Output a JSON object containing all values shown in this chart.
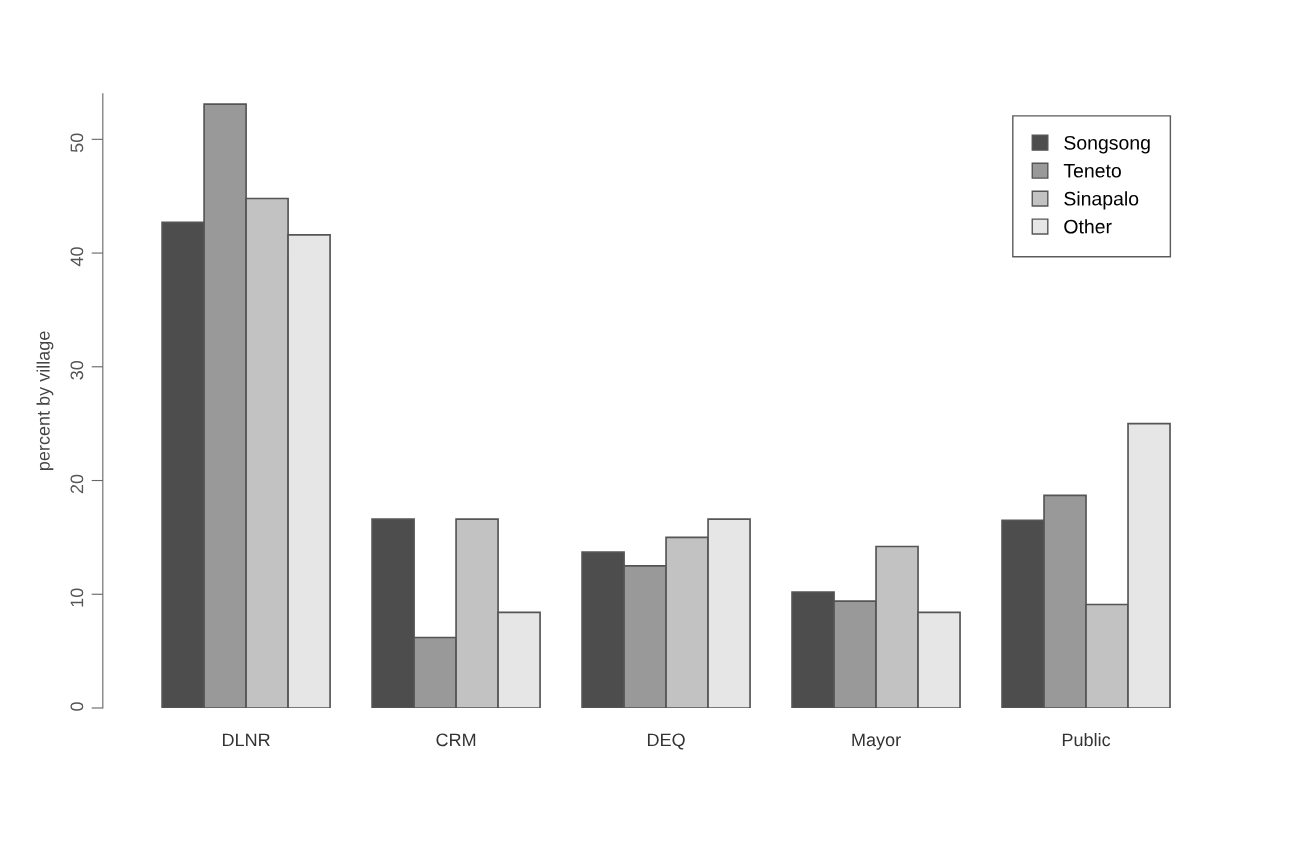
{
  "chart_data": {
    "type": "bar",
    "ylabel": "percent by village",
    "categories": [
      "DLNR",
      "CRM",
      "DEQ",
      "Mayor",
      "Public"
    ],
    "series": [
      {
        "name": "Songsong",
        "color": "#4d4d4d",
        "values": [
          42.7,
          16.6,
          13.7,
          10.2,
          16.5
        ]
      },
      {
        "name": "Teneto",
        "color": "#999999",
        "values": [
          53.1,
          6.2,
          12.5,
          9.4,
          18.7
        ]
      },
      {
        "name": "Sinapalo",
        "color": "#c2c2c2",
        "values": [
          44.8,
          16.6,
          15.0,
          14.2,
          9.1
        ]
      },
      {
        "name": "Other",
        "color": "#e6e6e6",
        "values": [
          41.6,
          8.4,
          16.6,
          8.4,
          25.0
        ]
      }
    ],
    "ylim": [
      0,
      54
    ],
    "yticks": [
      0,
      10,
      20,
      30,
      40,
      50
    ],
    "grid": false,
    "legend": "top right"
  }
}
